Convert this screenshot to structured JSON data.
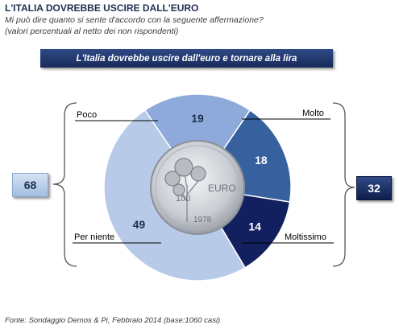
{
  "header": {
    "title": "L'ITALIA  DOVREBBE USCIRE DALL'EURO",
    "subtitle_line1": "Mi può dire quanto si sente d'accordo con la seguente affermazione?",
    "subtitle_line2": "(valori percentuali al netto dei non rispondenti)"
  },
  "banner": {
    "text": "L'Italia dovrebbe uscire dall'euro e tornare alla lira"
  },
  "totals": {
    "left": "68",
    "right": "32"
  },
  "coin": {
    "denomination": "100",
    "currency": "EURO",
    "year": "1978"
  },
  "footer": {
    "source": "Fonte: Sondaggio Demos & Pi, Febbraio 2014 (base:1060 casi)"
  },
  "colors": {
    "poco": "#8eaadb",
    "molto": "#37609e",
    "moltissimo": "#13205f",
    "per_niente": "#b7cbe9"
  },
  "chart_data": {
    "type": "pie",
    "title": "L'Italia dovrebbe uscire dall'euro e tornare alla lira",
    "slices": [
      {
        "label": "Poco",
        "value": 19
      },
      {
        "label": "Molto",
        "value": 18
      },
      {
        "label": "Moltissimo",
        "value": 14
      },
      {
        "label": "Per niente",
        "value": 49
      }
    ],
    "groups": [
      {
        "members": [
          "Per niente",
          "Poco"
        ],
        "total": 68
      },
      {
        "members": [
          "Molto",
          "Moltissimo"
        ],
        "total": 32
      }
    ]
  }
}
